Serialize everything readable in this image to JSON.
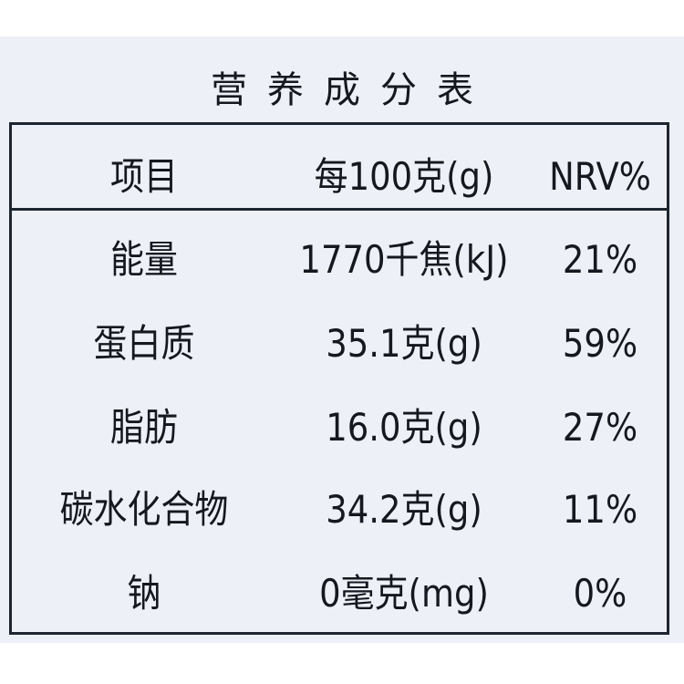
{
  "title": "营养成分表",
  "headers": [
    "项目",
    "每100克(g)",
    "NRV%"
  ],
  "rows": [
    {
      "item": "能量",
      "per100g": "1770千焦(kJ)",
      "nrv": "21%"
    },
    {
      "item": "蛋白质",
      "per100g": "35.1克(g)",
      "nrv": "59%"
    },
    {
      "item": "脂肪",
      "per100g": "16.0克(g)",
      "nrv": "27%"
    },
    {
      "item": "碳水化合物",
      "per100g": "34.2克(g)",
      "nrv": "11%"
    },
    {
      "item": "钠",
      "per100g": "0毫克(mg)",
      "nrv": "0%"
    }
  ]
}
